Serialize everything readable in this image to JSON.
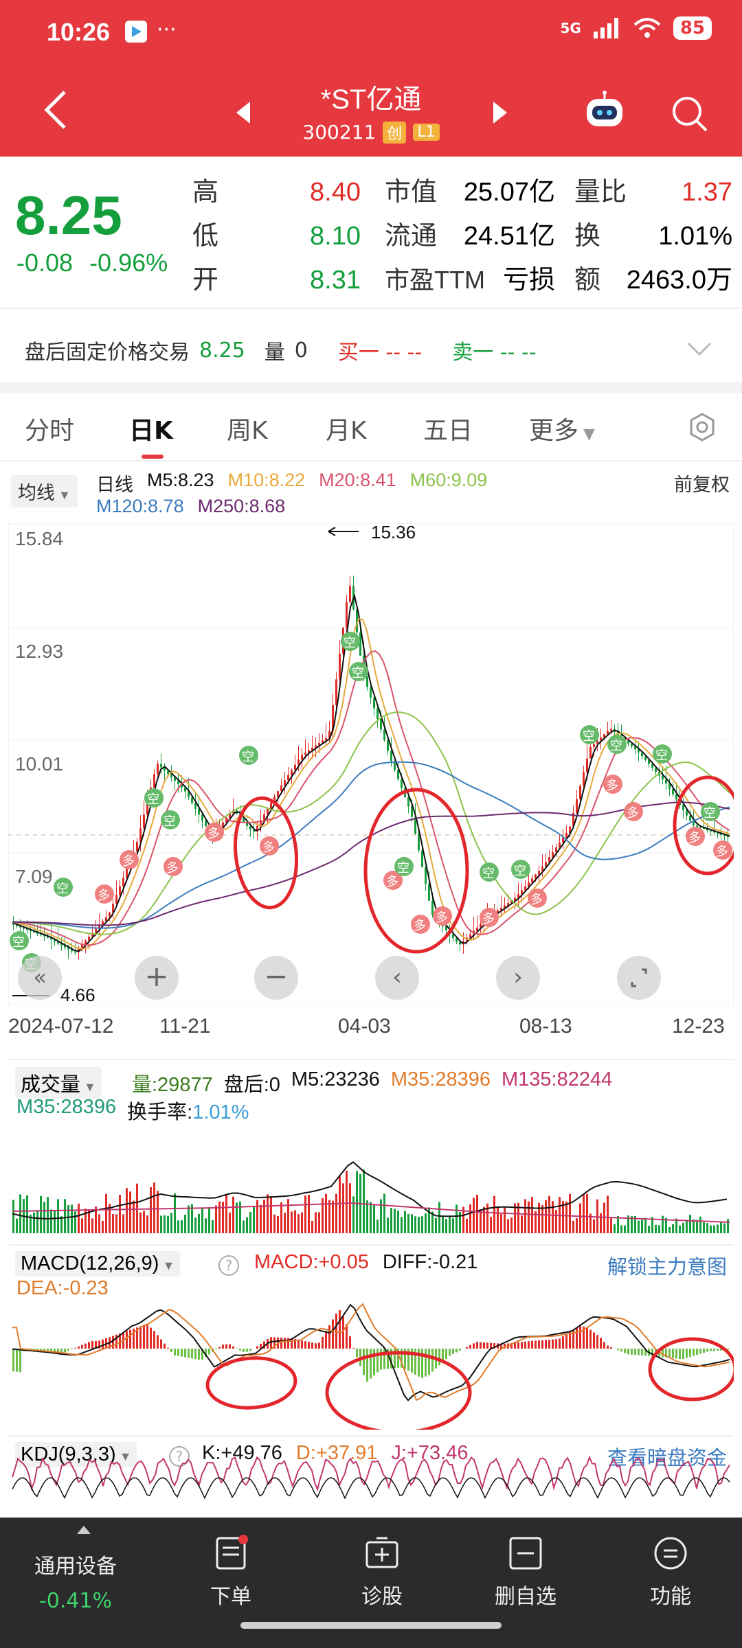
{
  "status_bar": {
    "time": "10:26",
    "network": "5G",
    "battery": "85"
  },
  "header": {
    "title": "*ST亿通",
    "code": "300211",
    "board_badge": "创",
    "level_badge": "L1"
  },
  "quote": {
    "price": "8.25",
    "change": "-0.08",
    "change_pct": "-0.96%",
    "rows": [
      {
        "l1": "高",
        "v1": "8.40",
        "l2": "市值",
        "v2": "25.07亿",
        "l3": "量比",
        "v3": "1.37"
      },
      {
        "l1": "低",
        "v1": "8.10",
        "l2": "流通",
        "v2": "24.51亿",
        "l3": "换",
        "v3": "1.01%"
      },
      {
        "l1": "开",
        "v1": "8.31",
        "l2": "市盈TTM",
        "v2": "亏损",
        "l3": "额",
        "v3": "2463.0万"
      }
    ]
  },
  "after_hours": {
    "label": "盘后固定价格交易",
    "price": "8.25",
    "vol_label": "量",
    "vol": "0",
    "buy1": "买一 -- --",
    "sell1": "卖一 -- --"
  },
  "tabs": [
    "分时",
    "日K",
    "周K",
    "月K",
    "五日",
    "更多"
  ],
  "active_tab": "日K",
  "ma_bar": {
    "selector": "均线",
    "period": "日线",
    "m5": "M5:8.23",
    "m10": "M10:8.22",
    "m20": "M20:8.41",
    "m60": "M60:9.09",
    "m120": "M120:8.78",
    "m250": "M250:8.68",
    "adjust": "前复权"
  },
  "kline": {
    "y_ticks": [
      "15.84",
      "12.93",
      "10.01",
      "7.09"
    ],
    "high_marker": "15.36",
    "low_marker": "4.66",
    "dates": [
      "2024-07-12",
      "11-21",
      "04-03",
      "08-13",
      "12-23"
    ],
    "signal_buy": "多",
    "signal_sell": "空"
  },
  "volume": {
    "selector": "成交量",
    "vol": "量:29877",
    "after": "盘后:0",
    "m5": "M5:23236",
    "m35": "M35:28396",
    "m135": "M135:82244",
    "m35b": "M35:28396",
    "turnover_label": "换手率:",
    "turnover": "1.01%"
  },
  "macd": {
    "selector": "MACD(12,26,9)",
    "macd": "MACD:+0.05",
    "diff": "DIFF:-0.21",
    "dea": "DEA:-0.23",
    "link": "解锁主力意图"
  },
  "kdj": {
    "selector": "KDJ(9,3,3)",
    "k": "K:+49.76",
    "d": "D:+37.91",
    "j": "J:+73.46",
    "link": "查看暗盘资金"
  },
  "bottom": {
    "device": "通用设备",
    "device_chg": "-0.41%",
    "items": [
      "下单",
      "诊股",
      "删自选",
      "功能"
    ]
  },
  "colors": {
    "header": "#e6393f",
    "up": "#e02b26",
    "down": "#159f3c",
    "m5": "#111111",
    "m10": "#e8a93a",
    "m20": "#d9536b",
    "m60": "#8bc34a",
    "m120": "#3b7bbf",
    "m250": "#6b2a6e"
  }
}
